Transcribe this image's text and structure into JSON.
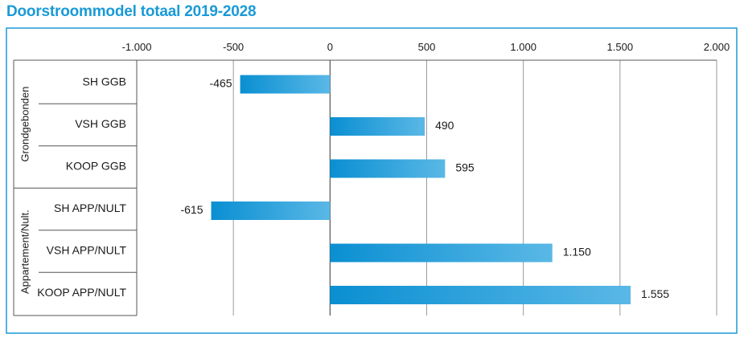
{
  "title": "Doorstroommodel totaal 2019-2028",
  "chart_data": {
    "type": "bar",
    "orientation": "horizontal",
    "title": "Doorstroommodel totaal 2019-2028",
    "xlabel": "",
    "ylabel": "",
    "xlim": [
      -1000,
      2000
    ],
    "x_ticks": [
      -1000,
      -500,
      0,
      500,
      1000,
      1500,
      2000
    ],
    "x_tick_labels": [
      "-1.000",
      "-500",
      "0",
      "500",
      "1.000",
      "1.500",
      "2.000"
    ],
    "grid": true,
    "legend": "none",
    "groups": [
      {
        "name": "Grondgebonden",
        "categories": [
          "SH GGB",
          "VSH GGB",
          "KOOP GGB"
        ],
        "values": [
          -465,
          490,
          595
        ],
        "value_labels": [
          "-465",
          "490",
          "595"
        ]
      },
      {
        "name": "Appartement/Nult.",
        "categories": [
          "SH APP/NULT",
          "VSH APP/NULT",
          "KOOP APP/NULT"
        ],
        "values": [
          -615,
          1150,
          1555
        ],
        "value_labels": [
          "-615",
          "1.150",
          "1.555"
        ]
      }
    ],
    "colors": {
      "bar_dark": "#0a8fd2",
      "bar_light": "#5ab8e6",
      "frame": "#1a9ad6",
      "grid": "#9a9a9a",
      "axis": "#555555"
    }
  }
}
